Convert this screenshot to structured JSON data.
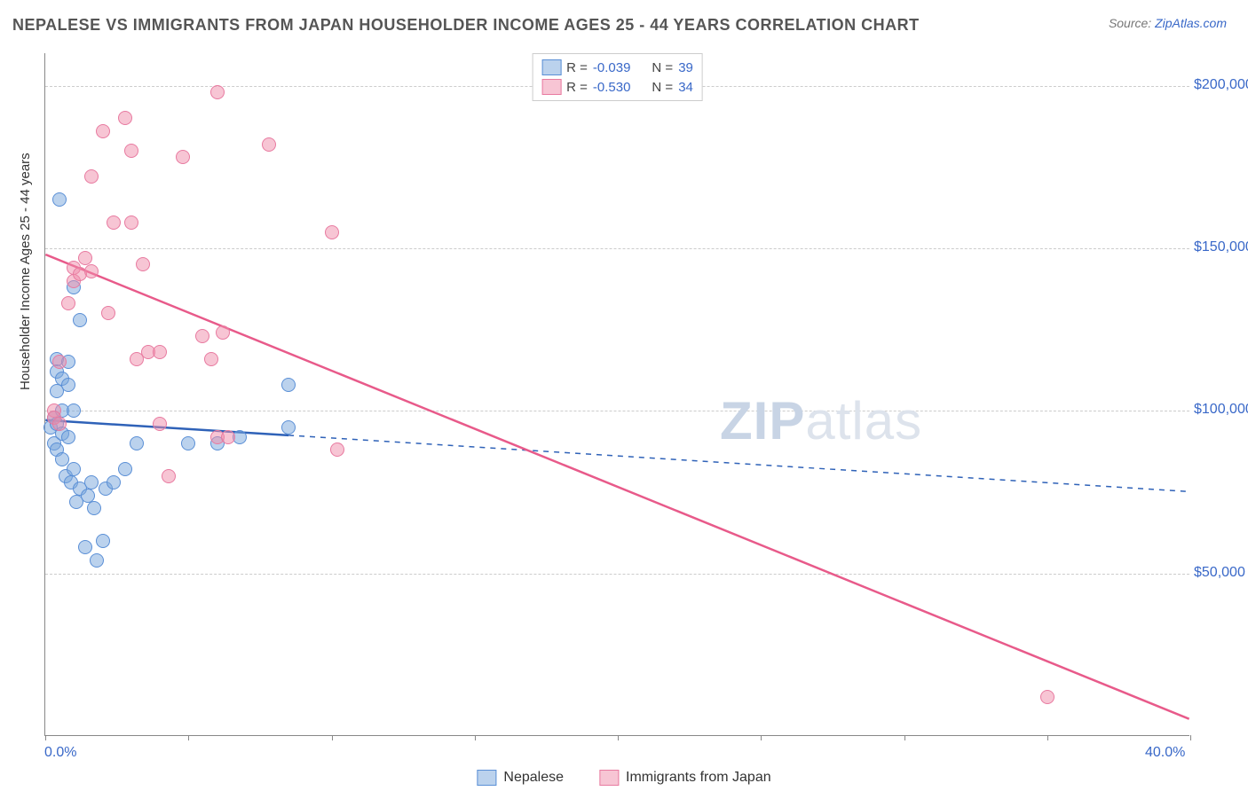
{
  "title": "NEPALESE VS IMMIGRANTS FROM JAPAN HOUSEHOLDER INCOME AGES 25 - 44 YEARS CORRELATION CHART",
  "source_label": "Source: ",
  "source_name": "ZipAtlas.com",
  "watermark_bold": "ZIP",
  "watermark_rest": "atlas",
  "chart": {
    "type": "scatter-with-regression",
    "ylabel": "Householder Income Ages 25 - 44 years",
    "xlim": [
      0,
      40
    ],
    "ylim": [
      0,
      210000
    ],
    "x_ticks": [
      0,
      5,
      10,
      15,
      20,
      25,
      30,
      35,
      40
    ],
    "x_tick_labels_visible": {
      "0": "0.0%",
      "40": "40.0%"
    },
    "y_gridlines": [
      50000,
      100000,
      150000,
      200000
    ],
    "y_tick_labels": {
      "50000": "$50,000",
      "100000": "$100,000",
      "150000": "$150,000",
      "200000": "$200,000"
    },
    "background_color": "#ffffff",
    "grid_color": "#cccccc",
    "axis_color": "#888888",
    "tick_label_color": "#3968c8",
    "marker_radius": 8,
    "series": [
      {
        "name": "Nepalese",
        "fill_color": "rgba(120,165,220,0.5)",
        "stroke_color": "#5a8fd6",
        "line_color": "#2f62b8",
        "R": "-0.039",
        "N": "39",
        "regression": {
          "x1": 0,
          "y1": 97000,
          "x2": 40,
          "y2": 75000,
          "solid_until_x": 8.5
        },
        "points": [
          [
            0.2,
            95000
          ],
          [
            0.3,
            98000
          ],
          [
            0.3,
            90000
          ],
          [
            0.4,
            116000
          ],
          [
            0.4,
            112000
          ],
          [
            0.4,
            106000
          ],
          [
            0.4,
            96000
          ],
          [
            0.4,
            88000
          ],
          [
            0.5,
            165000
          ],
          [
            0.6,
            110000
          ],
          [
            0.6,
            100000
          ],
          [
            0.6,
            93000
          ],
          [
            0.6,
            85000
          ],
          [
            0.7,
            80000
          ],
          [
            0.8,
            115000
          ],
          [
            0.8,
            108000
          ],
          [
            0.8,
            92000
          ],
          [
            0.9,
            78000
          ],
          [
            1.0,
            138000
          ],
          [
            1.0,
            100000
          ],
          [
            1.0,
            82000
          ],
          [
            1.1,
            72000
          ],
          [
            1.2,
            128000
          ],
          [
            1.2,
            76000
          ],
          [
            1.4,
            58000
          ],
          [
            1.5,
            74000
          ],
          [
            1.6,
            78000
          ],
          [
            1.7,
            70000
          ],
          [
            1.8,
            54000
          ],
          [
            2.0,
            60000
          ],
          [
            2.1,
            76000
          ],
          [
            2.4,
            78000
          ],
          [
            2.8,
            82000
          ],
          [
            3.2,
            90000
          ],
          [
            5.0,
            90000
          ],
          [
            6.0,
            90000
          ],
          [
            6.8,
            92000
          ],
          [
            8.5,
            108000
          ],
          [
            8.5,
            95000
          ]
        ]
      },
      {
        "name": "Immigrants from Japan",
        "fill_color": "rgba(240,140,170,0.5)",
        "stroke_color": "#e87aa0",
        "line_color": "#e85a8a",
        "R": "-0.530",
        "N": "34",
        "regression": {
          "x1": 0,
          "y1": 148000,
          "x2": 40,
          "y2": 5000,
          "solid_until_x": 40
        },
        "points": [
          [
            0.3,
            100000
          ],
          [
            0.3,
            98000
          ],
          [
            0.5,
            115000
          ],
          [
            0.5,
            96000
          ],
          [
            0.8,
            133000
          ],
          [
            1.0,
            144000
          ],
          [
            1.0,
            140000
          ],
          [
            1.2,
            142000
          ],
          [
            1.4,
            147000
          ],
          [
            1.6,
            172000
          ],
          [
            1.6,
            143000
          ],
          [
            2.0,
            186000
          ],
          [
            2.2,
            130000
          ],
          [
            2.4,
            158000
          ],
          [
            2.8,
            190000
          ],
          [
            3.0,
            180000
          ],
          [
            3.0,
            158000
          ],
          [
            3.2,
            116000
          ],
          [
            3.4,
            145000
          ],
          [
            3.6,
            118000
          ],
          [
            4.0,
            118000
          ],
          [
            4.0,
            96000
          ],
          [
            4.3,
            80000
          ],
          [
            4.8,
            178000
          ],
          [
            5.5,
            123000
          ],
          [
            5.8,
            116000
          ],
          [
            6.0,
            198000
          ],
          [
            6.0,
            92000
          ],
          [
            6.2,
            124000
          ],
          [
            6.4,
            92000
          ],
          [
            7.8,
            182000
          ],
          [
            10.0,
            155000
          ],
          [
            10.2,
            88000
          ],
          [
            35.0,
            12000
          ]
        ]
      }
    ],
    "legend_top_labels": {
      "R": "R = ",
      "N": "N = "
    },
    "legend_bottom": [
      "Nepalese",
      "Immigrants from Japan"
    ]
  }
}
